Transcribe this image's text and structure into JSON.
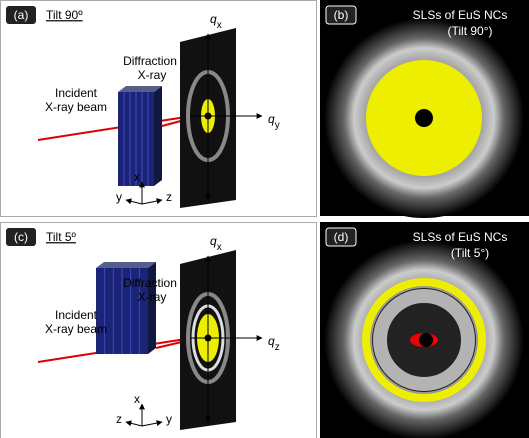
{
  "panel_a": {
    "label": "(a)",
    "title": "Tilt 90º",
    "q_top": {
      "symbol": "q",
      "subscript": "x"
    },
    "q_side": {
      "symbol": "q",
      "subscript": "y"
    },
    "diffraction_label": [
      "Diffraction",
      "X-ray"
    ],
    "incident_label": [
      "Incident",
      "X-ray beam"
    ],
    "frame_axes": [
      "x",
      "y",
      "z"
    ]
  },
  "panel_b": {
    "label": "(b)",
    "caption": [
      "SLSs of EuS NCs",
      "(Tilt 90°)"
    ]
  },
  "panel_c": {
    "label": "(c)",
    "title": "Tilt 5º",
    "q_top": {
      "symbol": "q",
      "subscript": "x"
    },
    "q_side": {
      "symbol": "q",
      "subscript": "z"
    },
    "diffraction_label": [
      "Diffraction",
      "X-ray"
    ],
    "incident_label": [
      "Incident",
      "X-ray beam"
    ],
    "frame_axes": [
      "x",
      "z",
      "y"
    ]
  },
  "panel_d": {
    "label": "(d)",
    "caption": [
      "SLSs of EuS NCs",
      "(Tilt 5°)"
    ]
  }
}
